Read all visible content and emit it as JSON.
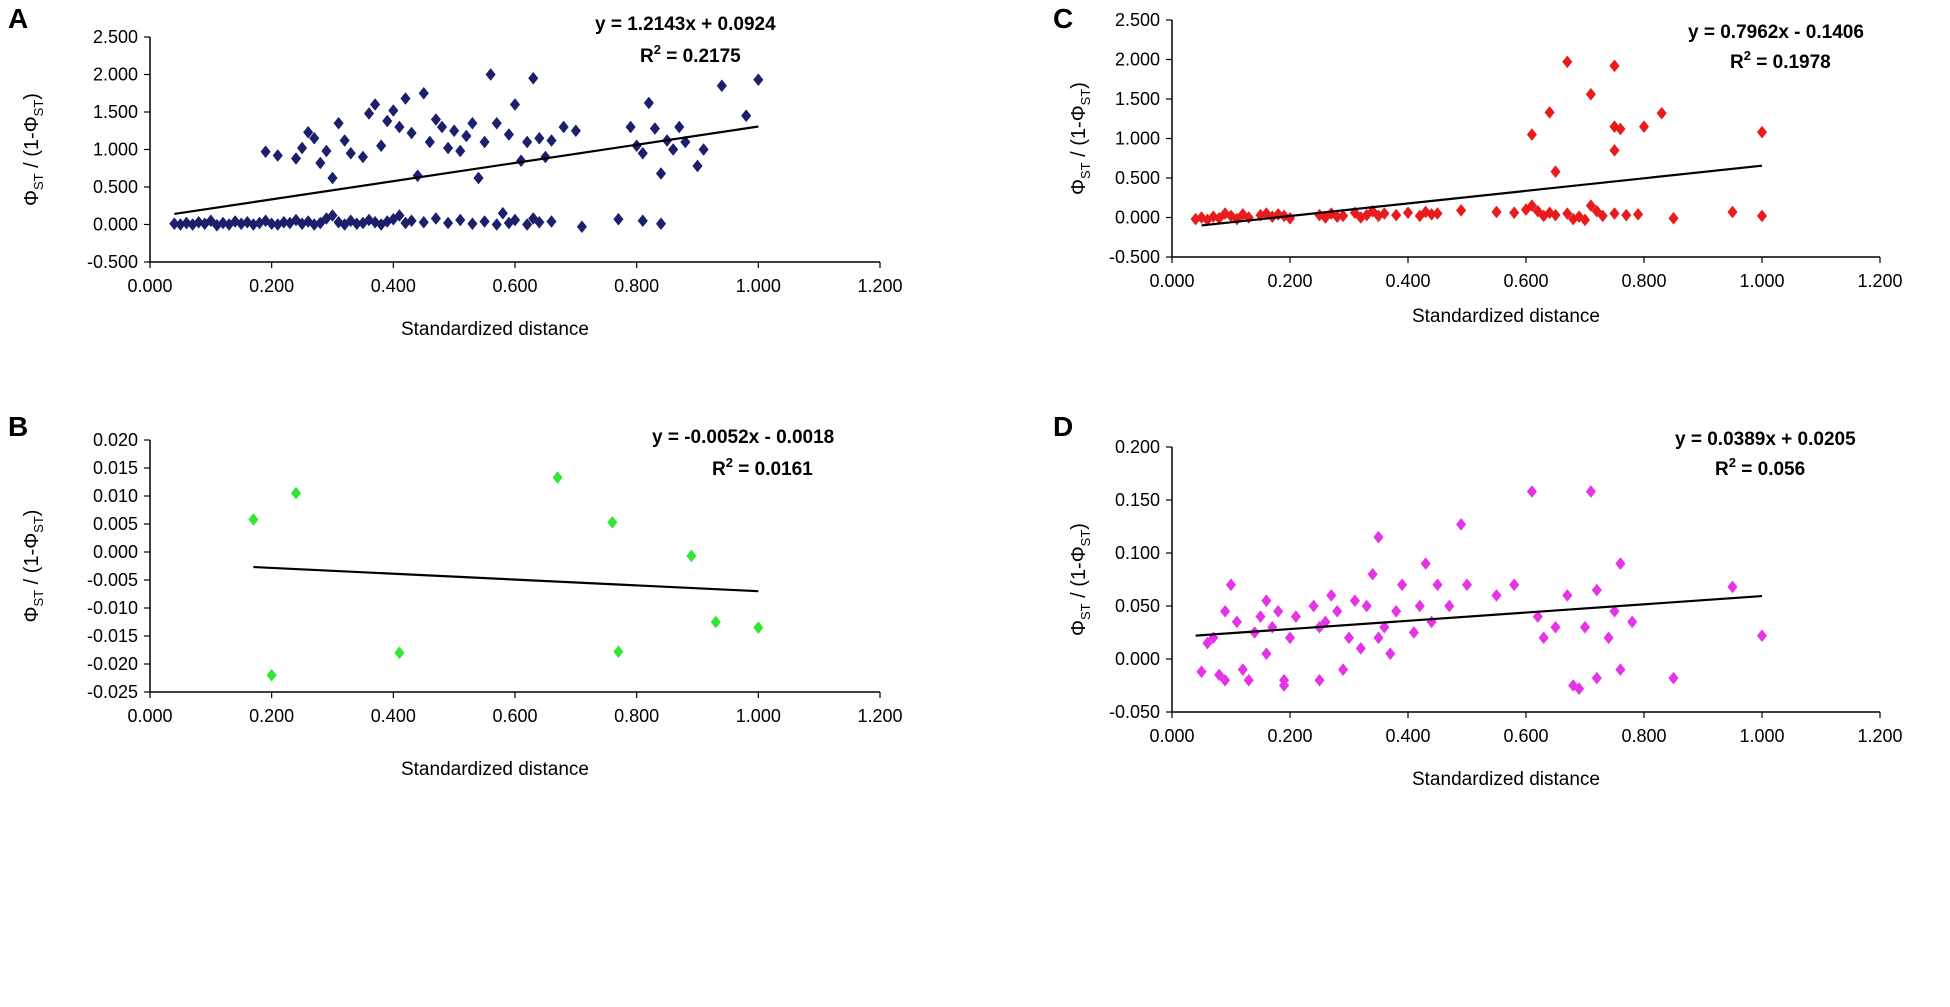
{
  "chart_data": [
    {
      "id": "A",
      "type": "scatter",
      "panel_letter": "A",
      "xlabel": "Standardized distance",
      "ylabel_parts": [
        "Φ",
        "ST",
        " / (1-Φ",
        "ST",
        ")"
      ],
      "xlim": [
        0,
        1.2
      ],
      "ylim": [
        -0.5,
        2.5
      ],
      "x_ticks": [
        "0.000",
        "0.200",
        "0.400",
        "0.600",
        "0.800",
        "1.000",
        "1.200"
      ],
      "y_ticks": [
        "-0.500",
        "0.000",
        "0.500",
        "1.000",
        "1.500",
        "2.000",
        "2.500"
      ],
      "equation": "y = 1.2143x + 0.0924",
      "r2_label": "R",
      "r2_sup": "2",
      "r2_value": " = 0.2175",
      "marker_color": "#1c1f6b",
      "trendline": {
        "slope": 1.2143,
        "intercept": 0.0924,
        "x_range": [
          0.04,
          1.0
        ]
      },
      "points": [
        [
          0.04,
          0.01
        ],
        [
          0.05,
          0.0
        ],
        [
          0.06,
          0.02
        ],
        [
          0.07,
          0.0
        ],
        [
          0.08,
          0.03
        ],
        [
          0.09,
          0.01
        ],
        [
          0.1,
          0.05
        ],
        [
          0.11,
          -0.01
        ],
        [
          0.12,
          0.02
        ],
        [
          0.13,
          0.0
        ],
        [
          0.14,
          0.04
        ],
        [
          0.15,
          0.01
        ],
        [
          0.16,
          0.03
        ],
        [
          0.17,
          0.0
        ],
        [
          0.18,
          0.02
        ],
        [
          0.19,
          0.05
        ],
        [
          0.2,
          0.01
        ],
        [
          0.21,
          0.0
        ],
        [
          0.22,
          0.03
        ],
        [
          0.23,
          0.02
        ],
        [
          0.24,
          0.06
        ],
        [
          0.25,
          0.01
        ],
        [
          0.26,
          0.04
        ],
        [
          0.27,
          0.0
        ],
        [
          0.28,
          0.02
        ],
        [
          0.29,
          0.08
        ],
        [
          0.3,
          0.12
        ],
        [
          0.31,
          0.03
        ],
        [
          0.32,
          0.0
        ],
        [
          0.33,
          0.05
        ],
        [
          0.34,
          0.01
        ],
        [
          0.35,
          0.02
        ],
        [
          0.36,
          0.06
        ],
        [
          0.37,
          0.03
        ],
        [
          0.38,
          0.0
        ],
        [
          0.39,
          0.04
        ],
        [
          0.4,
          0.07
        ],
        [
          0.41,
          0.12
        ],
        [
          0.42,
          0.02
        ],
        [
          0.43,
          0.05
        ],
        [
          0.45,
          0.03
        ],
        [
          0.47,
          0.08
        ],
        [
          0.49,
          0.02
        ],
        [
          0.51,
          0.06
        ],
        [
          0.53,
          0.01
        ],
        [
          0.55,
          0.04
        ],
        [
          0.57,
          0.0
        ],
        [
          0.58,
          0.15
        ],
        [
          0.59,
          0.02
        ],
        [
          0.6,
          0.06
        ],
        [
          0.62,
          0.0
        ],
        [
          0.63,
          0.08
        ],
        [
          0.64,
          0.03
        ],
        [
          0.66,
          0.04
        ],
        [
          0.71,
          -0.03
        ],
        [
          0.77,
          0.07
        ],
        [
          0.81,
          0.05
        ],
        [
          0.84,
          0.01
        ],
        [
          0.19,
          0.97
        ],
        [
          0.21,
          0.92
        ],
        [
          0.24,
          0.88
        ],
        [
          0.25,
          1.02
        ],
        [
          0.26,
          1.23
        ],
        [
          0.27,
          1.15
        ],
        [
          0.28,
          0.82
        ],
        [
          0.29,
          0.98
        ],
        [
          0.3,
          0.62
        ],
        [
          0.31,
          1.35
        ],
        [
          0.32,
          1.12
        ],
        [
          0.33,
          0.95
        ],
        [
          0.35,
          0.9
        ],
        [
          0.36,
          1.48
        ],
        [
          0.37,
          1.6
        ],
        [
          0.38,
          1.05
        ],
        [
          0.39,
          1.38
        ],
        [
          0.4,
          1.52
        ],
        [
          0.41,
          1.3
        ],
        [
          0.42,
          1.68
        ],
        [
          0.43,
          1.22
        ],
        [
          0.44,
          0.65
        ],
        [
          0.45,
          1.75
        ],
        [
          0.46,
          1.1
        ],
        [
          0.47,
          1.4
        ],
        [
          0.48,
          1.3
        ],
        [
          0.49,
          1.02
        ],
        [
          0.5,
          1.25
        ],
        [
          0.51,
          0.98
        ],
        [
          0.52,
          1.18
        ],
        [
          0.53,
          1.35
        ],
        [
          0.54,
          0.62
        ],
        [
          0.55,
          1.1
        ],
        [
          0.56,
          2.0
        ],
        [
          0.57,
          1.35
        ],
        [
          0.59,
          1.2
        ],
        [
          0.6,
          1.6
        ],
        [
          0.61,
          0.85
        ],
        [
          0.62,
          1.1
        ],
        [
          0.63,
          1.95
        ],
        [
          0.64,
          1.15
        ],
        [
          0.65,
          0.9
        ],
        [
          0.66,
          1.12
        ],
        [
          0.68,
          1.3
        ],
        [
          0.7,
          1.25
        ],
        [
          0.79,
          1.3
        ],
        [
          0.8,
          1.05
        ],
        [
          0.81,
          0.95
        ],
        [
          0.82,
          1.62
        ],
        [
          0.83,
          1.28
        ],
        [
          0.84,
          0.68
        ],
        [
          0.85,
          1.12
        ],
        [
          0.86,
          1.0
        ],
        [
          0.87,
          1.3
        ],
        [
          0.88,
          1.1
        ],
        [
          0.9,
          0.78
        ],
        [
          0.91,
          1.0
        ],
        [
          0.94,
          1.85
        ],
        [
          0.98,
          1.45
        ],
        [
          1.0,
          1.93
        ]
      ]
    },
    {
      "id": "B",
      "type": "scatter",
      "panel_letter": "B",
      "xlabel": "Standardized distance",
      "ylabel_parts": [
        "Φ",
        "ST",
        " / (1-Φ",
        "ST",
        ")"
      ],
      "xlim": [
        0,
        1.2
      ],
      "ylim": [
        -0.025,
        0.02
      ],
      "x_ticks": [
        "0.000",
        "0.200",
        "0.400",
        "0.600",
        "0.800",
        "1.000",
        "1.200"
      ],
      "y_ticks": [
        "-0.025",
        "-0.020",
        "-0.015",
        "-0.010",
        "-0.005",
        "0.000",
        "0.005",
        "0.010",
        "0.015",
        "0.020"
      ],
      "equation": "y = -0.0052x - 0.0018",
      "r2_label": "R",
      "r2_sup": "2",
      "r2_value": " = 0.0161",
      "marker_color": "#33e633",
      "trendline": {
        "slope": -0.0052,
        "intercept": -0.0018,
        "x_range": [
          0.17,
          1.0
        ]
      },
      "points": [
        [
          0.17,
          0.0058
        ],
        [
          0.2,
          -0.022
        ],
        [
          0.24,
          0.0105
        ],
        [
          0.41,
          -0.018
        ],
        [
          0.67,
          0.0133
        ],
        [
          0.76,
          0.0053
        ],
        [
          0.77,
          -0.0178
        ],
        [
          0.89,
          -0.0007
        ],
        [
          0.93,
          -0.0125
        ],
        [
          1.0,
          -0.0135
        ]
      ]
    },
    {
      "id": "C",
      "type": "scatter",
      "panel_letter": "C",
      "xlabel": "Standardized distance",
      "ylabel_parts": [
        "Φ",
        "ST",
        " / (1-Φ",
        "ST",
        ")"
      ],
      "xlim": [
        0,
        1.2
      ],
      "ylim": [
        -0.5,
        2.5
      ],
      "x_ticks": [
        "0.000",
        "0.200",
        "0.400",
        "0.600",
        "0.800",
        "1.000",
        "1.200"
      ],
      "y_ticks": [
        "-0.500",
        "0.000",
        "0.500",
        "1.000",
        "1.500",
        "2.000",
        "2.500"
      ],
      "equation": "y = 0.7962x - 0.1406",
      "r2_label": "R",
      "r2_sup": "2",
      "r2_value": " = 0.1978",
      "marker_color": "#e81c1c",
      "trendline": {
        "slope": 0.7962,
        "intercept": -0.1406,
        "x_range": [
          0.05,
          1.0
        ]
      },
      "points": [
        [
          0.04,
          -0.02
        ],
        [
          0.05,
          0.0
        ],
        [
          0.06,
          -0.03
        ],
        [
          0.07,
          0.01
        ],
        [
          0.08,
          -0.01
        ],
        [
          0.09,
          0.05
        ],
        [
          0.1,
          0.02
        ],
        [
          0.11,
          -0.02
        ],
        [
          0.12,
          0.04
        ],
        [
          0.13,
          0.0
        ],
        [
          0.15,
          0.03
        ],
        [
          0.16,
          0.05
        ],
        [
          0.17,
          0.01
        ],
        [
          0.18,
          0.04
        ],
        [
          0.19,
          0.02
        ],
        [
          0.2,
          -0.01
        ],
        [
          0.25,
          0.03
        ],
        [
          0.26,
          0.0
        ],
        [
          0.27,
          0.05
        ],
        [
          0.28,
          0.01
        ],
        [
          0.29,
          0.02
        ],
        [
          0.31,
          0.06
        ],
        [
          0.32,
          0.0
        ],
        [
          0.33,
          0.03
        ],
        [
          0.34,
          0.08
        ],
        [
          0.35,
          0.02
        ],
        [
          0.36,
          0.05
        ],
        [
          0.38,
          0.03
        ],
        [
          0.4,
          0.06
        ],
        [
          0.42,
          0.02
        ],
        [
          0.43,
          0.07
        ],
        [
          0.44,
          0.04
        ],
        [
          0.45,
          0.05
        ],
        [
          0.49,
          0.09
        ],
        [
          0.55,
          0.07
        ],
        [
          0.58,
          0.06
        ],
        [
          0.6,
          0.1
        ],
        [
          0.61,
          0.15
        ],
        [
          0.62,
          0.08
        ],
        [
          0.63,
          0.02
        ],
        [
          0.64,
          0.06
        ],
        [
          0.65,
          0.03
        ],
        [
          0.67,
          0.05
        ],
        [
          0.68,
          -0.02
        ],
        [
          0.69,
          0.01
        ],
        [
          0.7,
          -0.03
        ],
        [
          0.71,
          0.15
        ],
        [
          0.72,
          0.08
        ],
        [
          0.73,
          0.02
        ],
        [
          0.75,
          0.05
        ],
        [
          0.77,
          0.03
        ],
        [
          0.79,
          0.04
        ],
        [
          0.85,
          -0.01
        ],
        [
          0.95,
          0.07
        ],
        [
          1.0,
          0.02
        ],
        [
          0.61,
          1.05
        ],
        [
          0.64,
          1.33
        ],
        [
          0.65,
          0.58
        ],
        [
          0.67,
          1.97
        ],
        [
          0.71,
          1.56
        ],
        [
          0.75,
          1.92
        ],
        [
          0.75,
          1.15
        ],
        [
          0.75,
          0.85
        ],
        [
          0.76,
          1.12
        ],
        [
          0.8,
          1.15
        ],
        [
          0.83,
          1.32
        ],
        [
          1.0,
          1.08
        ]
      ]
    },
    {
      "id": "D",
      "type": "scatter",
      "panel_letter": "D",
      "xlabel": "Standardized distance",
      "ylabel_parts": [
        "Φ",
        "ST",
        " / (1-Φ",
        "ST",
        ")"
      ],
      "xlim": [
        0,
        1.2
      ],
      "ylim": [
        -0.05,
        0.2
      ],
      "x_ticks": [
        "0.000",
        "0.200",
        "0.400",
        "0.600",
        "0.800",
        "1.000",
        "1.200"
      ],
      "y_ticks": [
        "-0.050",
        "0.000",
        "0.050",
        "0.100",
        "0.150",
        "0.200"
      ],
      "equation": "y = 0.0389x + 0.0205",
      "r2_label": "R",
      "r2_sup": "2",
      "r2_value": " = 0.056",
      "marker_color": "#e633e6",
      "trendline": {
        "slope": 0.0389,
        "intercept": 0.0205,
        "x_range": [
          0.04,
          1.0
        ]
      },
      "points": [
        [
          0.05,
          -0.012
        ],
        [
          0.06,
          0.015
        ],
        [
          0.07,
          0.02
        ],
        [
          0.08,
          -0.015
        ],
        [
          0.09,
          -0.02
        ],
        [
          0.09,
          0.045
        ],
        [
          0.1,
          0.07
        ],
        [
          0.11,
          0.035
        ],
        [
          0.12,
          -0.01
        ],
        [
          0.13,
          -0.02
        ],
        [
          0.14,
          0.025
        ],
        [
          0.15,
          0.04
        ],
        [
          0.16,
          0.005
        ],
        [
          0.16,
          0.055
        ],
        [
          0.17,
          0.03
        ],
        [
          0.18,
          0.045
        ],
        [
          0.19,
          -0.02
        ],
        [
          0.19,
          -0.025
        ],
        [
          0.2,
          0.02
        ],
        [
          0.21,
          0.04
        ],
        [
          0.24,
          0.05
        ],
        [
          0.25,
          -0.02
        ],
        [
          0.25,
          0.03
        ],
        [
          0.26,
          0.035
        ],
        [
          0.27,
          0.06
        ],
        [
          0.28,
          0.045
        ],
        [
          0.29,
          -0.01
        ],
        [
          0.3,
          0.02
        ],
        [
          0.31,
          0.055
        ],
        [
          0.32,
          0.01
        ],
        [
          0.33,
          0.05
        ],
        [
          0.34,
          0.08
        ],
        [
          0.35,
          0.115
        ],
        [
          0.35,
          0.02
        ],
        [
          0.36,
          0.03
        ],
        [
          0.37,
          0.005
        ],
        [
          0.38,
          0.045
        ],
        [
          0.39,
          0.07
        ],
        [
          0.41,
          0.025
        ],
        [
          0.42,
          0.05
        ],
        [
          0.43,
          0.09
        ],
        [
          0.44,
          0.035
        ],
        [
          0.45,
          0.07
        ],
        [
          0.47,
          0.05
        ],
        [
          0.49,
          0.127
        ],
        [
          0.5,
          0.07
        ],
        [
          0.55,
          0.06
        ],
        [
          0.58,
          0.07
        ],
        [
          0.61,
          0.158
        ],
        [
          0.62,
          0.04
        ],
        [
          0.63,
          0.02
        ],
        [
          0.65,
          0.03
        ],
        [
          0.67,
          0.06
        ],
        [
          0.68,
          -0.025
        ],
        [
          0.69,
          -0.028
        ],
        [
          0.7,
          0.03
        ],
        [
          0.71,
          0.158
        ],
        [
          0.72,
          0.065
        ],
        [
          0.72,
          -0.018
        ],
        [
          0.74,
          0.02
        ],
        [
          0.75,
          0.045
        ],
        [
          0.76,
          0.09
        ],
        [
          0.76,
          -0.01
        ],
        [
          0.78,
          0.035
        ],
        [
          0.85,
          -0.018
        ],
        [
          0.95,
          0.068
        ],
        [
          1.0,
          0.022
        ]
      ]
    }
  ]
}
